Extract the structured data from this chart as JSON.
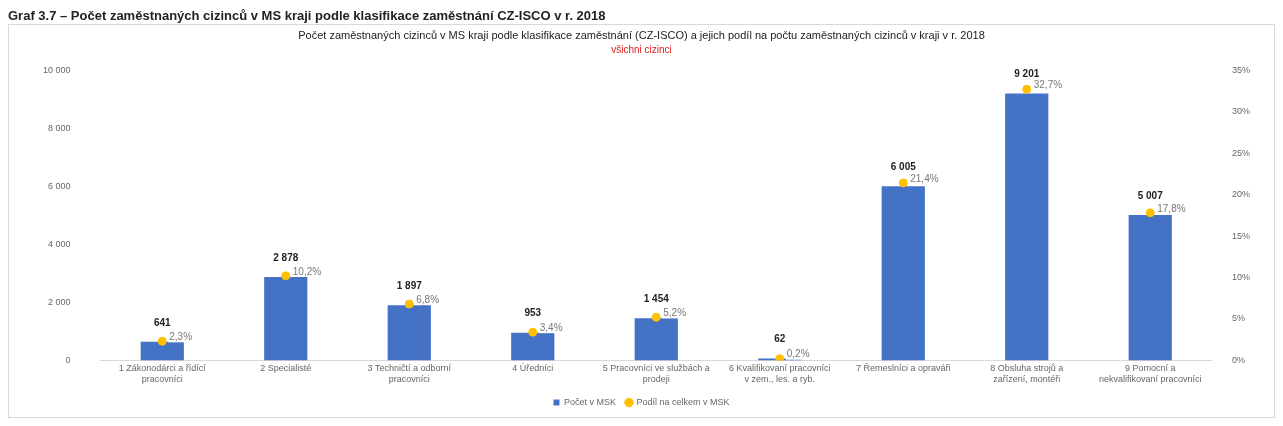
{
  "chart_data": {
    "type": "bar",
    "title": "Počet zaměstnaných cizinců v MS kraji podle klasifikace zaměstnání (CZ-ISCO) a jejich podíl na počtu zaměstnaných cizinců v kraji v r. 2018",
    "subtitle": "všichni cizinci",
    "annotations": [
      "Graf 3.7 – Počet zaměstnaných cizinců v MS kraji podle klasifikace zaměstnání CZ-ISCO v r. 2018"
    ],
    "categories": [
      "1 Zákonodárci a řídící pracovníci",
      "2 Specialisté",
      "3 Techničtí a odborní pracovníci",
      "4 Úředníci",
      "5 Pracovníci ve službách a prodeji",
      "6 Kvalifikovaní pracovníci v zem., les. a ryb.",
      "7 Řemeslníci a opraváři",
      "8 Obsluha strojů a zařízení, montéři",
      "9 Pomocní a nekvalifikovaní pracovníci"
    ],
    "series": [
      {
        "name": "Počet v MSK",
        "color": "#4472c4",
        "values": [
          641,
          2878,
          1897,
          953,
          1454,
          62,
          6005,
          9201,
          5007
        ],
        "value_labels": [
          "641",
          "2 878",
          "1 897",
          "953",
          "1 454",
          "62",
          "6 005",
          "9 201",
          "5 007"
        ]
      },
      {
        "name": "Podíl na celkem v MSK",
        "type": "scatter",
        "axis": "y2",
        "marker": "circle",
        "color": "#ffc000",
        "x": [
          "1 Zákonodárci a řídící pracovníci",
          "2 Specialisté",
          "3 Techničtí a odborní pracovníci",
          "4 Úředníci",
          "5 Pracovníci ve službách a prodeji",
          "6 Kvalifikovaní pracovníci v zem., les. a ryb.",
          "7 Řemeslníci a opraváři",
          "8 Obsluha strojů a zařízení, montéři",
          "9 Pomocní a nekvalifikovaní pracovníci"
        ],
        "values": [
          2.3,
          10.2,
          6.8,
          3.4,
          5.2,
          0.2,
          21.4,
          32.7,
          17.8
        ],
        "value_labels": [
          "2,3%",
          "10,2%",
          "6,8%",
          "3,4%",
          "5,2%",
          "0,2%",
          "21,4%",
          "32,7%",
          "17,8%"
        ]
      }
    ],
    "ylim": [
      0,
      10000
    ],
    "yticks": [
      {
        "value": 0,
        "label": "0"
      },
      {
        "value": 2000,
        "label": "2 000"
      },
      {
        "value": 4000,
        "label": "4 000"
      },
      {
        "value": 6000,
        "label": "6 000"
      },
      {
        "value": 8000,
        "label": "8 000"
      },
      {
        "value": 10000,
        "label": "10 000"
      }
    ],
    "y2lim": [
      0,
      35
    ],
    "y2ticks": [
      {
        "value": 0,
        "label": "0%"
      },
      {
        "value": 5,
        "label": "5%"
      },
      {
        "value": 10,
        "label": "10%"
      },
      {
        "value": 15,
        "label": "15%"
      },
      {
        "value": 20,
        "label": "20%"
      },
      {
        "value": 25,
        "label": "25%"
      },
      {
        "value": 30,
        "label": "30%"
      },
      {
        "value": 35,
        "label": "35%"
      }
    ],
    "grid": false,
    "legend": "bottom"
  }
}
